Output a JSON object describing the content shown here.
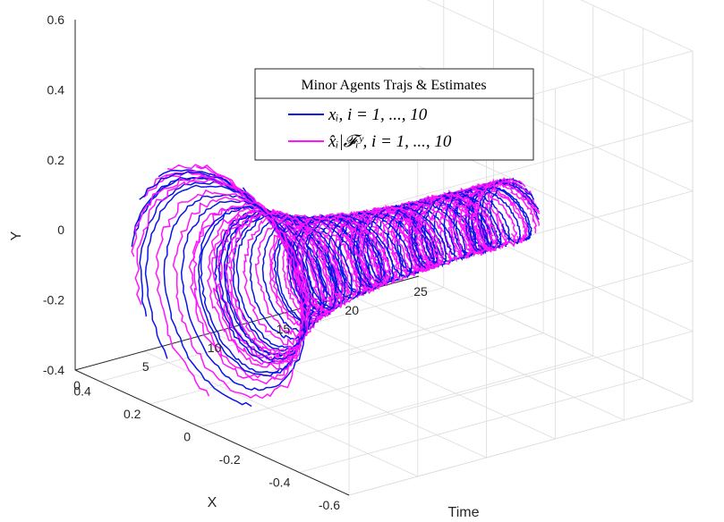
{
  "chart_data": {
    "type": "line",
    "projection": "3d",
    "title": "",
    "xlabel": "X",
    "ylabel": "Y",
    "zlabel": "Time",
    "xlim": [
      -0.6,
      0.5
    ],
    "ylim": [
      -0.4,
      0.6
    ],
    "zlim": [
      0,
      25
    ],
    "xticks": [
      "0.4",
      "0.2",
      "0",
      "-0.2",
      "-0.4",
      "-0.6"
    ],
    "yticks": [
      "0.6",
      "0.4",
      "0.2",
      "0",
      "-0.2",
      "-0.4"
    ],
    "zticks": [
      "0",
      "5",
      "10",
      "15",
      "20",
      "25"
    ],
    "grid": true,
    "agents": 10,
    "legend": {
      "title": "Minor Agents Trajs & Estimates",
      "placement": "top-center",
      "entries": [
        {
          "label": "x_i, i = 1,...,10",
          "display": "xᵢ, i = 1, ..., 10",
          "color": "#0a14e6"
        },
        {
          "label": "x̂_{i|F_i^y}, i = 1,...,10",
          "display": "x̂ᵢ|𝓕ᵢʸ, i = 1, ..., 10",
          "color": "#ff14ff"
        }
      ]
    },
    "series": [
      {
        "name": "x_i, i = 1,...,10",
        "color": "#0a14e6",
        "kind": "trajectory"
      },
      {
        "name": "x̂_{i|F_i^y}, i = 1,...,10",
        "color": "#ff14ff",
        "kind": "estimate"
      }
    ]
  }
}
